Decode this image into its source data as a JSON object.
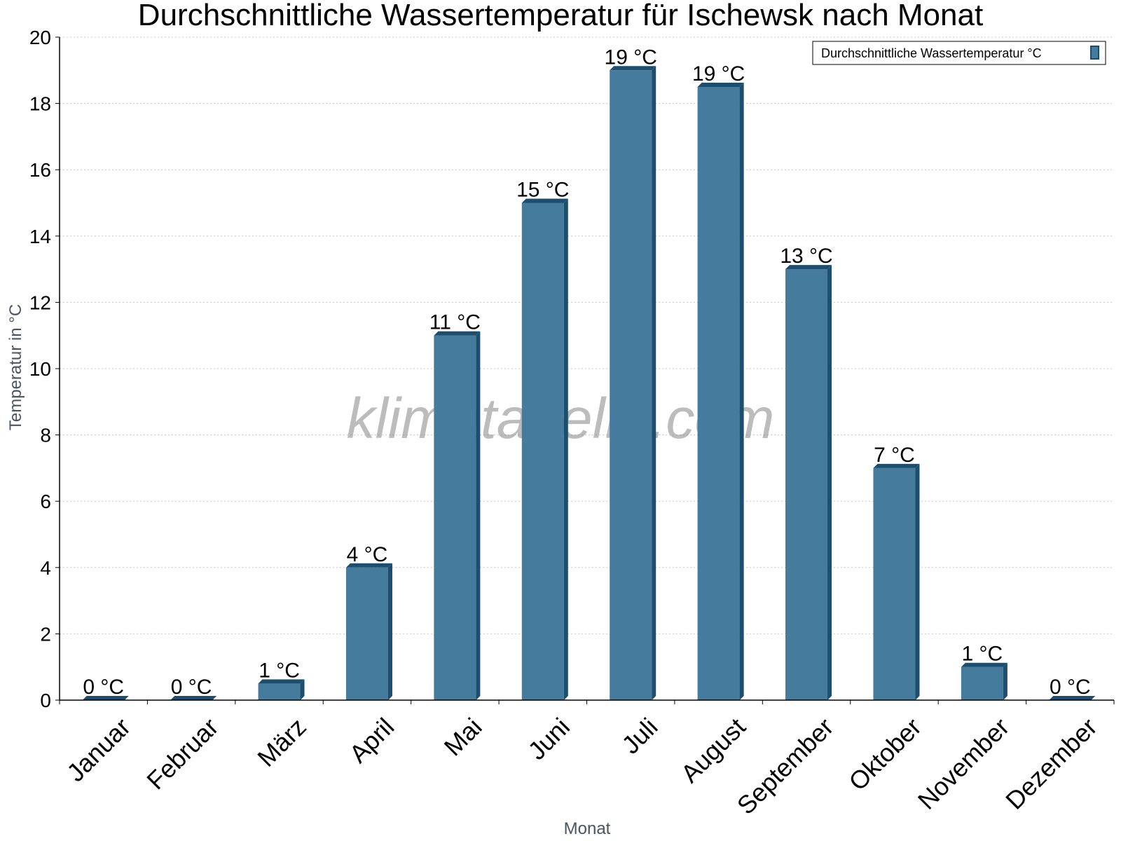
{
  "chart_data": {
    "type": "bar",
    "title": "Durchschnittliche Wassertemperatur für Ischewsk nach Monat",
    "xlabel": "Monat",
    "ylabel": "Temperatur in °C",
    "ylim": [
      0,
      20
    ],
    "yticks": [
      "0",
      "2",
      "4",
      "6",
      "8",
      "10",
      "12",
      "14",
      "16",
      "18",
      "20"
    ],
    "grid": true,
    "legend_position": "top-right",
    "categories": [
      "Januar",
      "Februar",
      "März",
      "April",
      "Mai",
      "Juni",
      "Juli",
      "August",
      "September",
      "Oktober",
      "November",
      "Dezember"
    ],
    "series": [
      {
        "name": "Durchschnittliche Wassertemperatur °C",
        "values": [
          0,
          0,
          0.5,
          4,
          11,
          15,
          19,
          18.5,
          13,
          7,
          1,
          0
        ],
        "labels": [
          "0 °C",
          "0 °C",
          "1 °C",
          "4 °C",
          "11 °C",
          "15 °C",
          "19 °C",
          "19 °C",
          "13 °C",
          "7 °C",
          "1 °C",
          "0 °C"
        ],
        "color": "#457b9d",
        "side_color": "#1d4e6e"
      }
    ]
  },
  "watermark": "klimatabelle.com"
}
